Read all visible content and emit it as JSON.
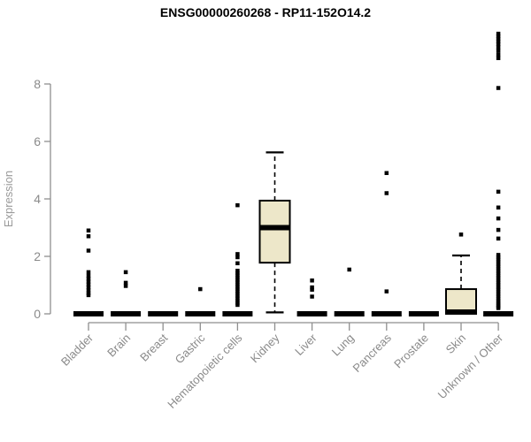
{
  "chart_data": {
    "type": "boxplot",
    "title": "ENSG00000260268 - RP11-152O14.2",
    "xlabel": "",
    "ylabel": "Expression",
    "ylim": [
      0,
      9.9
    ],
    "yticks": [
      0,
      2,
      4,
      6,
      8
    ],
    "grid": false,
    "legend": "none",
    "colors": {
      "box_fill": "#ede7c9",
      "box_stroke": "#000000",
      "median": "#000000",
      "outlier": "#000000",
      "axis": "#8f8f8f",
      "tick_label": "#8a8a8a",
      "axis_title": "#9a9a9a",
      "title": "#000000",
      "background": "#ffffff"
    },
    "categories": [
      "Bladder",
      "Brain",
      "Breast",
      "Gastric",
      "Hematopoietic cells",
      "Kidney",
      "Liver",
      "Lung",
      "Pancreas",
      "Prostate",
      "Skin",
      "Unknown / Other"
    ],
    "series": [
      {
        "name": "Bladder",
        "low": 0,
        "q1": 0,
        "median": 0,
        "q3": 0,
        "high": 0,
        "outliers": [
          2.9,
          2.7,
          2.2,
          1.45,
          1.32,
          1.22,
          1.12,
          1.02,
          0.92,
          0.82,
          0.72,
          0.65
        ]
      },
      {
        "name": "Brain",
        "low": 0,
        "q1": 0,
        "median": 0,
        "q3": 0,
        "high": 0,
        "outliers": [
          1.45,
          1.08,
          0.97
        ]
      },
      {
        "name": "Breast",
        "low": 0,
        "q1": 0,
        "median": 0,
        "q3": 0,
        "high": 0,
        "outliers": []
      },
      {
        "name": "Gastric",
        "low": 0,
        "q1": 0,
        "median": 0,
        "q3": 0,
        "high": 0,
        "outliers": [
          0.86
        ]
      },
      {
        "name": "Hematopoietic cells",
        "low": 0,
        "q1": 0,
        "median": 0,
        "q3": 0,
        "high": 0,
        "outliers": [
          3.78,
          2.08,
          1.97,
          1.76,
          1.5,
          1.42,
          1.34,
          1.26,
          1.18,
          1.1,
          1.02,
          0.94,
          0.86,
          0.78,
          0.7,
          0.62,
          0.54,
          0.46,
          0.38,
          0.31
        ]
      },
      {
        "name": "Kidney",
        "low": 0.05,
        "q1": 1.78,
        "median": 3.0,
        "q3": 3.94,
        "high": 5.62,
        "outliers": []
      },
      {
        "name": "Liver",
        "low": 0,
        "q1": 0,
        "median": 0,
        "q3": 0,
        "high": 0,
        "outliers": [
          1.16,
          0.92,
          0.84,
          0.6
        ]
      },
      {
        "name": "Lung",
        "low": 0,
        "q1": 0,
        "median": 0,
        "q3": 0,
        "high": 0,
        "outliers": [
          1.54
        ]
      },
      {
        "name": "Pancreas",
        "low": 0,
        "q1": 0,
        "median": 0,
        "q3": 0,
        "high": 0,
        "outliers": [
          4.9,
          4.2,
          0.78
        ]
      },
      {
        "name": "Prostate",
        "low": 0,
        "q1": 0,
        "median": 0,
        "q3": 0,
        "high": 0,
        "outliers": []
      },
      {
        "name": "Skin",
        "low": 0,
        "q1": 0,
        "median": 0.06,
        "q3": 0.86,
        "high": 2.03,
        "outliers": [
          2.76
        ]
      },
      {
        "name": "Unknown / Other",
        "low": 0,
        "q1": 0,
        "median": 0,
        "q3": 0,
        "high": 0,
        "outliers": [
          9.75,
          9.66,
          9.57,
          9.48,
          9.39,
          9.28,
          9.16,
          9.02,
          8.9,
          7.86,
          4.25,
          3.7,
          3.32,
          2.92,
          2.62,
          2.05,
          1.97,
          1.89,
          1.81,
          1.73,
          1.65,
          1.57,
          1.49,
          1.41,
          1.33,
          1.25,
          1.17,
          1.09,
          1.01,
          0.93,
          0.85,
          0.77,
          0.69,
          0.61,
          0.53,
          0.45,
          0.38,
          0.31,
          0.25,
          0.2
        ]
      }
    ]
  }
}
